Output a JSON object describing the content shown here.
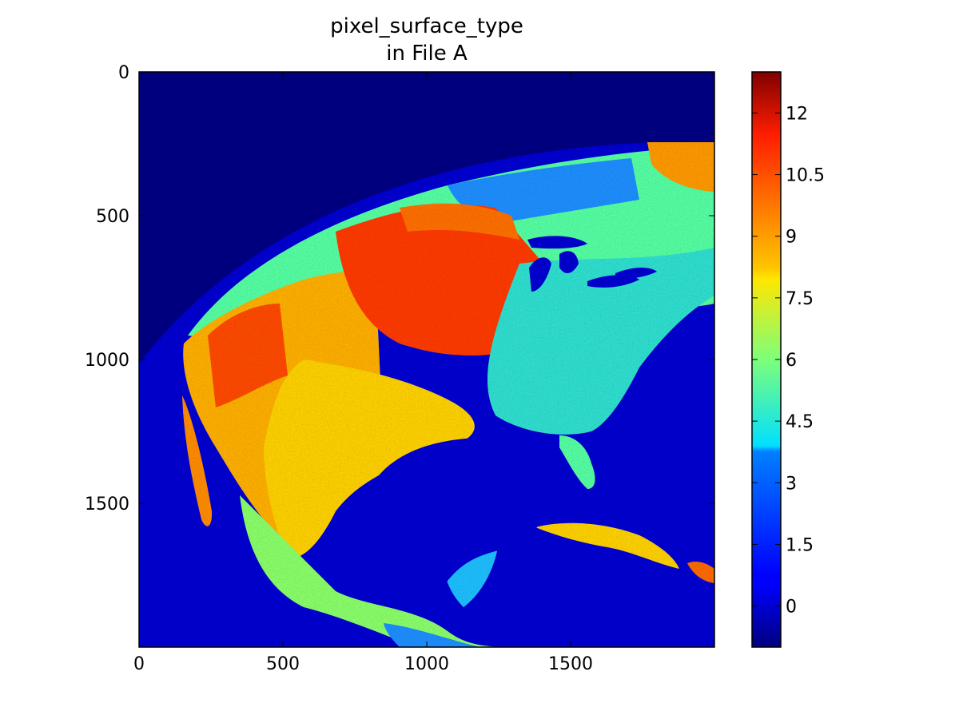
{
  "chart_data": {
    "type": "heatmap",
    "title_lines": [
      "pixel_surface_type",
      "in File A"
    ],
    "xlabel": "",
    "ylabel": "",
    "x_axis": {
      "ticks": [
        0,
        500,
        1000,
        1500
      ],
      "lim": [
        0,
        2000
      ]
    },
    "y_axis": {
      "ticks": [
        0,
        500,
        1000,
        1500
      ],
      "lim": [
        2000,
        0
      ],
      "inverted": true
    },
    "colorbar": {
      "colormap": "jet",
      "range": [
        -1,
        13
      ],
      "ticks": [
        "0",
        "1.5",
        "3",
        "4.5",
        "6",
        "7.5",
        "9",
        "10.5",
        "12"
      ],
      "tick_values": [
        0,
        1.5,
        3,
        4.5,
        6,
        7.5,
        9,
        10.5,
        12
      ]
    },
    "background_color": "#00007f",
    "water_color": "#0000c8",
    "grid": false,
    "legend": "none",
    "image_description_values": {
      "space": -1,
      "water": 0,
      "land_class_range": [
        1,
        13
      ]
    }
  }
}
